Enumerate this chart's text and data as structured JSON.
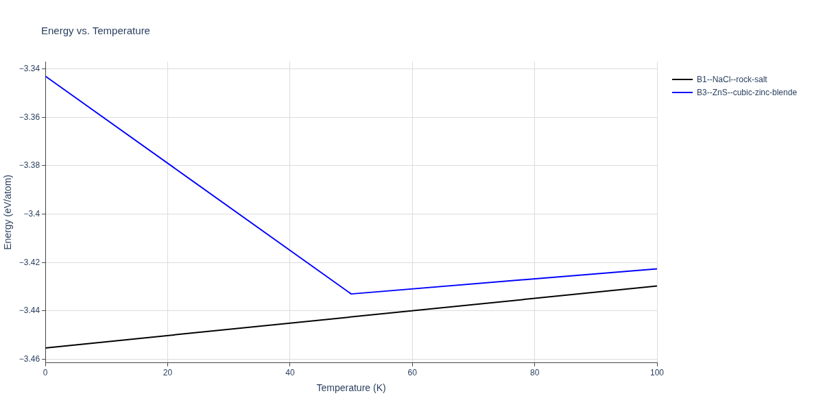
{
  "chart_data": {
    "type": "line",
    "title": "Energy vs. Temperature",
    "xlabel": "Temperature (K)",
    "ylabel": "Energy (eV/atom)",
    "series": [
      {
        "name": "B1--NaCl--rock-salt",
        "color": "#000000",
        "x": [
          0,
          100
        ],
        "values": [
          -3.4553,
          -3.4297
        ]
      },
      {
        "name": "B3--ZnS--cubic-zinc-blende",
        "color": "#0000ff",
        "x": [
          0,
          50,
          100
        ],
        "values": [
          -3.343,
          -3.433,
          -3.4226
        ]
      }
    ],
    "xlim": [
      0,
      100
    ],
    "xticks": [
      0,
      20,
      40,
      60,
      80,
      100
    ],
    "ylim": [
      -3.4615,
      -3.337
    ],
    "yticks": [
      {
        "value": -3.46,
        "label": "−3.46"
      },
      {
        "value": -3.44,
        "label": "−3.44"
      },
      {
        "value": -3.42,
        "label": "−3.42"
      },
      {
        "value": -3.4,
        "label": "−3.4"
      },
      {
        "value": -3.38,
        "label": "−3.38"
      },
      {
        "value": -3.36,
        "label": "−3.36"
      },
      {
        "value": -3.34,
        "label": "−3.34"
      }
    ],
    "grid": true,
    "legend": "top right",
    "marker": "none",
    "line_style": "solid"
  }
}
